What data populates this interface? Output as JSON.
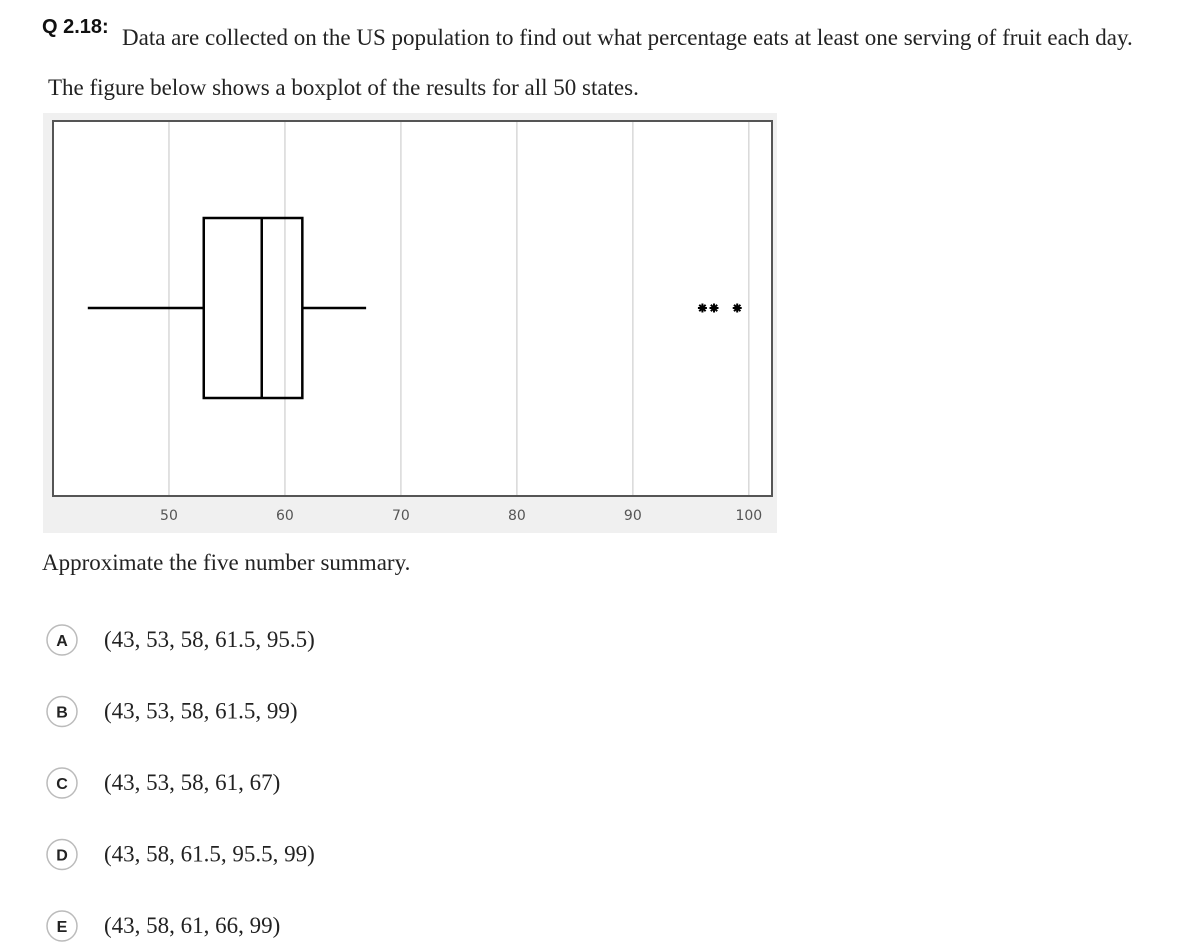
{
  "question": {
    "label": "Q 2.18:",
    "text": "Data are collected on the US population to find out what percentage eats at least one serving of fruit each day.",
    "intro": "The figure below shows a boxplot of the results for all 50 states."
  },
  "chart_data": {
    "type": "box",
    "whisker_low": 43,
    "q1": 53,
    "median": 58,
    "q3": 61.5,
    "whisker_high": 67,
    "outliers": [
      96,
      97,
      99
    ],
    "xlim": [
      40,
      102
    ],
    "xticks": [
      50,
      60,
      70,
      80,
      90,
      100
    ],
    "grid": true,
    "color": "#000000"
  },
  "prompt": "Approximate the five number summary.",
  "options": [
    {
      "letter": "A",
      "text": "(43, 53, 58, 61.5, 95.5)"
    },
    {
      "letter": "B",
      "text": "(43, 53, 58, 61.5, 99)"
    },
    {
      "letter": "C",
      "text": "(43, 53, 58, 61, 67)"
    },
    {
      "letter": "D",
      "text": "(43, 58, 61.5, 95.5, 99)"
    },
    {
      "letter": "E",
      "text": "(43, 58, 61, 66, 99)"
    }
  ]
}
